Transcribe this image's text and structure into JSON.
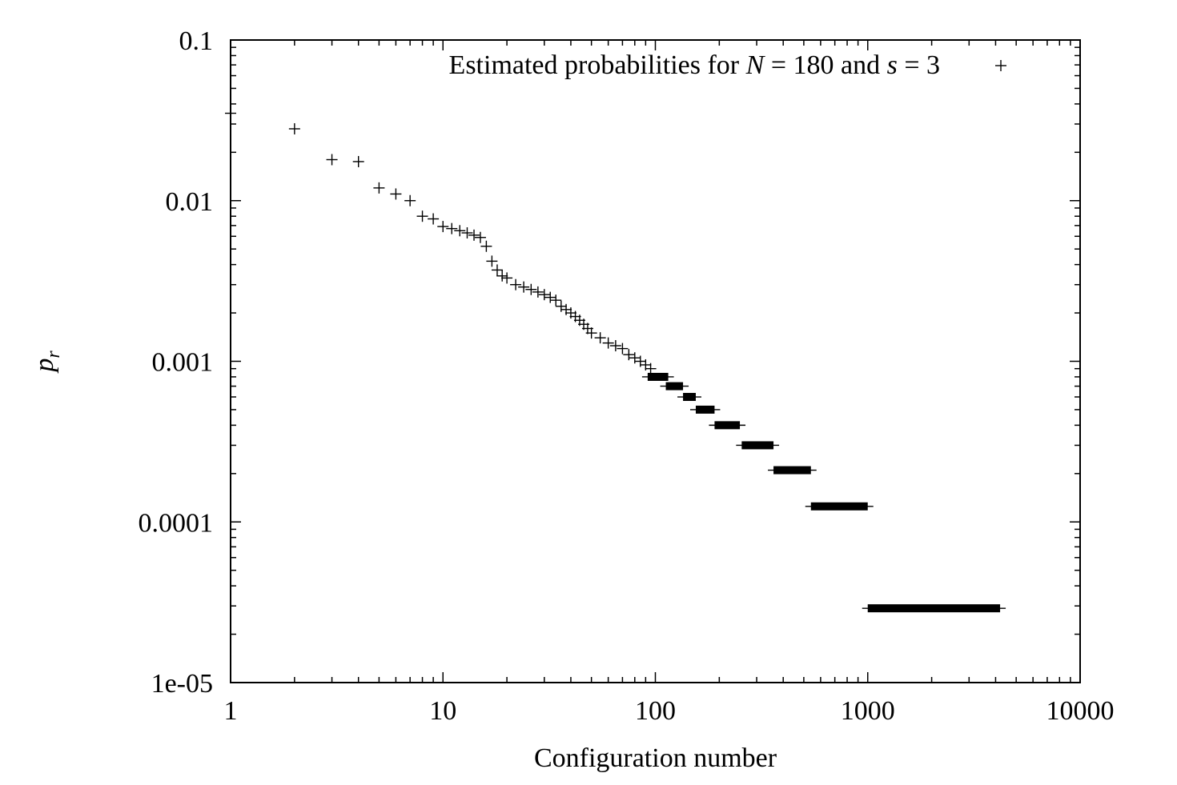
{
  "chart_data": {
    "type": "scatter",
    "x_scale": "log",
    "y_scale": "log",
    "xlim": [
      1,
      10000
    ],
    "ylim": [
      1e-05,
      0.1
    ],
    "x_ticks": [
      {
        "value": 1,
        "label": "1"
      },
      {
        "value": 10,
        "label": "10"
      },
      {
        "value": 100,
        "label": "100"
      },
      {
        "value": 1000,
        "label": "1000"
      },
      {
        "value": 10000,
        "label": "10000"
      }
    ],
    "y_ticks": [
      {
        "value": 0.1,
        "label": "0.1"
      },
      {
        "value": 0.01,
        "label": "0.01"
      },
      {
        "value": 0.001,
        "label": "0.001"
      },
      {
        "value": 0.0001,
        "label": "0.0001"
      },
      {
        "value": 1e-05,
        "label": "1e-05"
      }
    ],
    "xlabel": "Configuration number",
    "ylabel": {
      "base": "p",
      "sub": "r"
    },
    "legend": {
      "placement": "top-right",
      "parts": [
        {
          "text": "Estimated probabilities for ",
          "italic": false
        },
        {
          "text": "N",
          "italic": true
        },
        {
          "text": " = 180 and ",
          "italic": false
        },
        {
          "text": "s",
          "italic": true
        },
        {
          "text": " = 3",
          "italic": false
        }
      ],
      "marker": "+"
    },
    "grid": false,
    "color": "#000000",
    "series": [
      {
        "marker": "+",
        "points": [
          [
            1,
            0.035
          ],
          [
            2,
            0.028
          ],
          [
            3,
            0.018
          ],
          [
            4,
            0.0175
          ],
          [
            5,
            0.012
          ],
          [
            6,
            0.011
          ],
          [
            7,
            0.01
          ],
          [
            8,
            0.008
          ],
          [
            9,
            0.0077
          ],
          [
            10,
            0.0069
          ],
          [
            11,
            0.0067
          ],
          [
            12,
            0.0065
          ],
          [
            13,
            0.0063
          ],
          [
            14,
            0.0061
          ],
          [
            15,
            0.0059
          ],
          [
            16,
            0.0052
          ],
          [
            17,
            0.0042
          ],
          [
            18,
            0.0037
          ],
          [
            19,
            0.0034
          ],
          [
            20,
            0.0033
          ],
          [
            22,
            0.003
          ],
          [
            24,
            0.0029
          ],
          [
            26,
            0.0028
          ],
          [
            28,
            0.0027
          ],
          [
            30,
            0.0026
          ],
          [
            32,
            0.0025
          ],
          [
            34,
            0.0024
          ],
          [
            36,
            0.0022
          ],
          [
            38,
            0.0021
          ],
          [
            40,
            0.002
          ],
          [
            42,
            0.0019
          ],
          [
            44,
            0.0018
          ],
          [
            46,
            0.0017
          ],
          [
            48,
            0.0016
          ],
          [
            50,
            0.0015
          ],
          [
            55,
            0.0014
          ],
          [
            60,
            0.0013
          ],
          [
            65,
            0.00125
          ],
          [
            70,
            0.0012
          ],
          [
            75,
            0.0011
          ],
          [
            80,
            0.00105
          ],
          [
            85,
            0.001
          ],
          [
            90,
            0.00095
          ],
          [
            95,
            0.0009
          ]
        ],
        "plateaus": [
          {
            "x_start": 92,
            "x_end": 115,
            "y": 0.0008
          },
          {
            "x_start": 112,
            "x_end": 135,
            "y": 0.0007
          },
          {
            "x_start": 135,
            "x_end": 155,
            "y": 0.0006
          },
          {
            "x_start": 155,
            "x_end": 190,
            "y": 0.0005
          },
          {
            "x_start": 190,
            "x_end": 250,
            "y": 0.0004
          },
          {
            "x_start": 255,
            "x_end": 360,
            "y": 0.0003
          },
          {
            "x_start": 360,
            "x_end": 540,
            "y": 0.00021
          },
          {
            "x_start": 540,
            "x_end": 1000,
            "y": 0.000125
          },
          {
            "x_start": 1000,
            "x_end": 4200,
            "y": 2.9e-05
          }
        ]
      }
    ]
  }
}
